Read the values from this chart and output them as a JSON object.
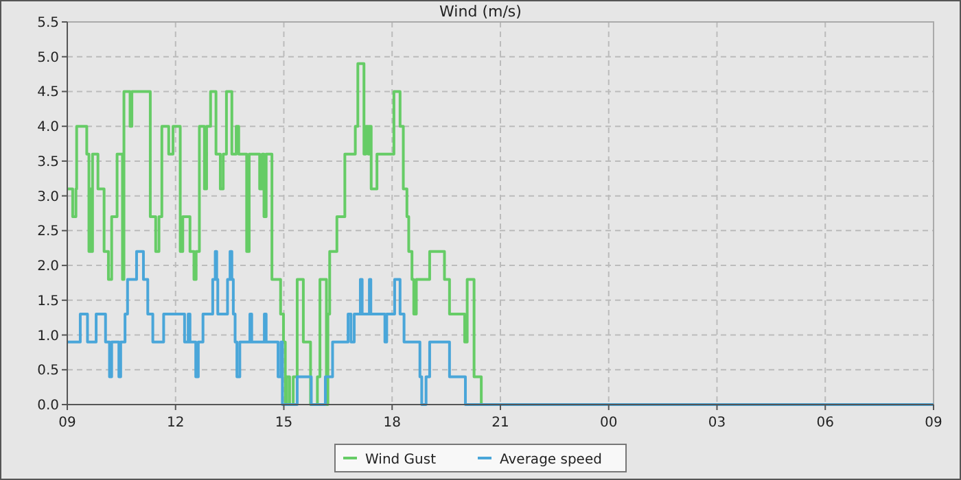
{
  "chart_data": {
    "type": "step",
    "title": "Wind (m/s)",
    "grid": true,
    "legend": "bottom",
    "line_style": "solid",
    "xlim": [
      9,
      33
    ],
    "xticks": [
      {
        "value": 9,
        "label": "09"
      },
      {
        "value": 12,
        "label": "12"
      },
      {
        "value": 15,
        "label": "15"
      },
      {
        "value": 18,
        "label": "18"
      },
      {
        "value": 21,
        "label": "21"
      },
      {
        "value": 24,
        "label": "00"
      },
      {
        "value": 27,
        "label": "03"
      },
      {
        "value": 30,
        "label": "06"
      },
      {
        "value": 33,
        "label": "09"
      }
    ],
    "ylim": [
      0,
      5.5
    ],
    "yticks": [
      {
        "value": 0,
        "label": "0.0"
      },
      {
        "value": 0.5,
        "label": "0.5"
      },
      {
        "value": 1,
        "label": "1.0"
      },
      {
        "value": 1.5,
        "label": "1.5"
      },
      {
        "value": 2,
        "label": "2.0"
      },
      {
        "value": 2.5,
        "label": "2.5"
      },
      {
        "value": 3,
        "label": "3.0"
      },
      {
        "value": 3.5,
        "label": "3.5"
      },
      {
        "value": 4,
        "label": "4.0"
      },
      {
        "value": 4.5,
        "label": "4.5"
      },
      {
        "value": 5,
        "label": "5.0"
      },
      {
        "value": 5.5,
        "label": "5.5"
      }
    ],
    "series": [
      {
        "name": "Wind Gust",
        "color": "#66cc66",
        "x": [
          9.0,
          9.15,
          9.24,
          9.26,
          9.54,
          9.6,
          9.63,
          9.66,
          9.7,
          9.85,
          10.02,
          10.14,
          10.23,
          10.38,
          10.53,
          10.57,
          10.74,
          10.79,
          11.3,
          11.45,
          11.54,
          11.62,
          11.81,
          11.93,
          12.13,
          12.2,
          12.4,
          12.51,
          12.57,
          12.66,
          12.8,
          12.86,
          12.97,
          13.12,
          13.24,
          13.32,
          13.41,
          13.56,
          13.68,
          13.75,
          13.97,
          14.04,
          14.33,
          14.4,
          14.45,
          14.51,
          14.67,
          14.91,
          14.99,
          15.04,
          15.08,
          15.16,
          15.26,
          15.37,
          15.54,
          15.74,
          15.93,
          16.0,
          16.18,
          16.22,
          16.27,
          16.47,
          16.69,
          16.98,
          17.05,
          17.22,
          17.27,
          17.34,
          17.37,
          17.42,
          17.58,
          18.05,
          18.22,
          18.31,
          18.41,
          18.46,
          18.55,
          18.6,
          18.67,
          19.04,
          19.45,
          19.59,
          20.01,
          20.08,
          20.27,
          20.47,
          33
        ],
        "values": [
          3.1,
          2.7,
          3.1,
          4.0,
          3.6,
          2.2,
          3.1,
          2.2,
          3.6,
          3.1,
          2.2,
          1.8,
          2.7,
          3.6,
          1.8,
          4.5,
          4.0,
          4.5,
          2.7,
          2.2,
          2.7,
          4.0,
          3.6,
          4.0,
          2.2,
          2.7,
          2.2,
          1.8,
          2.2,
          4.0,
          3.1,
          4.0,
          4.5,
          3.6,
          3.1,
          3.6,
          4.5,
          3.6,
          4.0,
          3.6,
          2.2,
          3.6,
          3.1,
          3.6,
          2.7,
          3.6,
          1.8,
          1.3,
          0.9,
          0,
          0.4,
          0,
          0.4,
          1.8,
          0.9,
          0,
          0.4,
          1.8,
          0,
          1.3,
          2.2,
          2.7,
          3.6,
          4.0,
          4.9,
          3.6,
          4.0,
          3.6,
          4.0,
          3.1,
          3.6,
          4.5,
          4.0,
          3.1,
          2.7,
          2.2,
          1.8,
          1.3,
          1.8,
          2.2,
          1.8,
          1.3,
          0.9,
          1.8,
          0.4,
          0,
          0
        ]
      },
      {
        "name": "Average speed",
        "color": "#4aa6d9",
        "x": [
          9.0,
          9.36,
          9.56,
          9.8,
          10.06,
          10.17,
          10.23,
          10.43,
          10.48,
          10.6,
          10.67,
          10.92,
          11.11,
          11.23,
          11.37,
          11.67,
          12.25,
          12.35,
          12.4,
          12.56,
          12.63,
          12.76,
          13.03,
          13.1,
          13.14,
          13.17,
          13.44,
          13.51,
          13.56,
          13.6,
          13.65,
          13.7,
          13.78,
          14.06,
          14.11,
          14.46,
          14.51,
          14.84,
          14.92,
          14.96,
          15.37,
          15.76,
          16.15,
          16.35,
          16.78,
          16.86,
          16.95,
          17.12,
          17.17,
          17.37,
          17.41,
          17.8,
          17.85,
          18.07,
          18.22,
          18.33,
          18.77,
          18.82,
          18.94,
          19.04,
          19.59,
          20.03,
          33
        ],
        "values": [
          0.9,
          1.3,
          0.9,
          1.3,
          0.9,
          0.4,
          0.9,
          0.4,
          0.9,
          1.3,
          1.8,
          2.2,
          1.8,
          1.3,
          0.9,
          1.3,
          0.9,
          1.3,
          0.9,
          0.4,
          0.9,
          1.3,
          1.8,
          2.2,
          1.8,
          1.3,
          1.8,
          2.2,
          1.8,
          1.3,
          0.9,
          0.4,
          0.9,
          1.3,
          0.9,
          1.3,
          0.9,
          0.4,
          0.9,
          0,
          0.4,
          0,
          0.4,
          0.9,
          1.3,
          0.9,
          1.3,
          1.8,
          1.3,
          1.8,
          1.3,
          0.9,
          1.3,
          1.8,
          1.3,
          0.9,
          0.4,
          0,
          0.4,
          0.9,
          0.4,
          0,
          0
        ]
      }
    ]
  }
}
